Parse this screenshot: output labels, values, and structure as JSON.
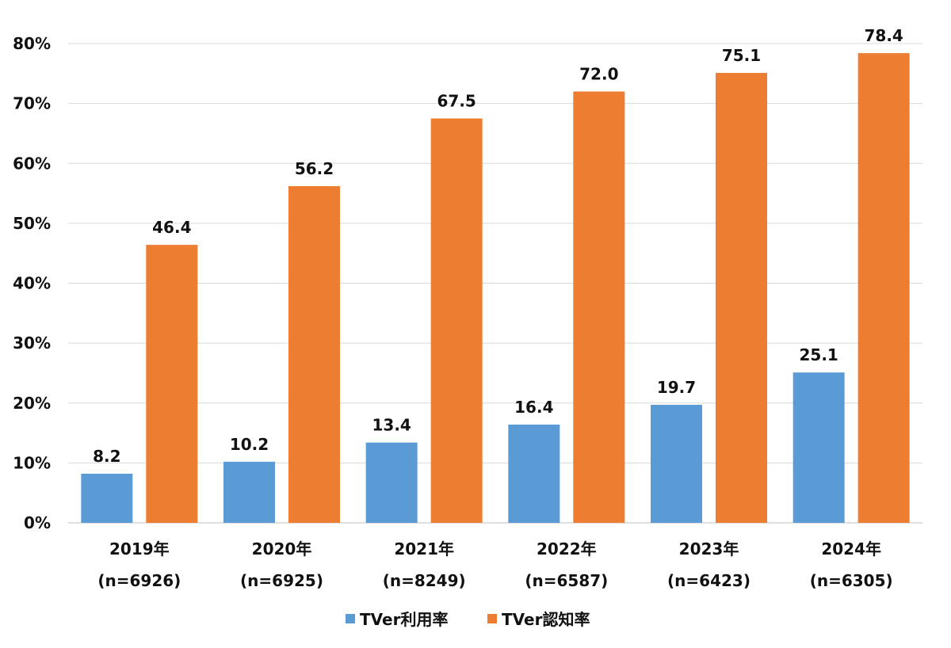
{
  "chart_data": {
    "type": "bar",
    "categories": [
      [
        "2019年",
        "(n=6926)"
      ],
      [
        "2020年",
        "(n=6925)"
      ],
      [
        "2021年",
        "(n=8249)"
      ],
      [
        "2022年",
        "(n=6587)"
      ],
      [
        "2023年",
        "(n=6423)"
      ],
      [
        "2024年",
        "(n=6305)"
      ]
    ],
    "series": [
      {
        "name": "TVer利用率",
        "values": [
          8.2,
          10.2,
          13.4,
          16.4,
          19.7,
          25.1
        ],
        "color": "#5b9bd5"
      },
      {
        "name": "TVer認知率",
        "values": [
          46.4,
          56.2,
          67.5,
          72.0,
          75.1,
          78.4
        ],
        "color": "#ed7d31"
      }
    ],
    "value_labels": [
      [
        "8.2",
        "10.2",
        "13.4",
        "16.4",
        "19.7",
        "25.1"
      ],
      [
        "46.4",
        "56.2",
        "67.5",
        "72.0",
        "75.1",
        "78.4"
      ]
    ],
    "ylim": [
      0,
      80
    ],
    "yticks": [
      0,
      10,
      20,
      30,
      40,
      50,
      60,
      70,
      80
    ],
    "ytick_labels": [
      "0%",
      "10%",
      "20%",
      "30%",
      "40%",
      "50%",
      "60%",
      "70%",
      "80%"
    ],
    "grid": true,
    "legend_position": "bottom"
  }
}
